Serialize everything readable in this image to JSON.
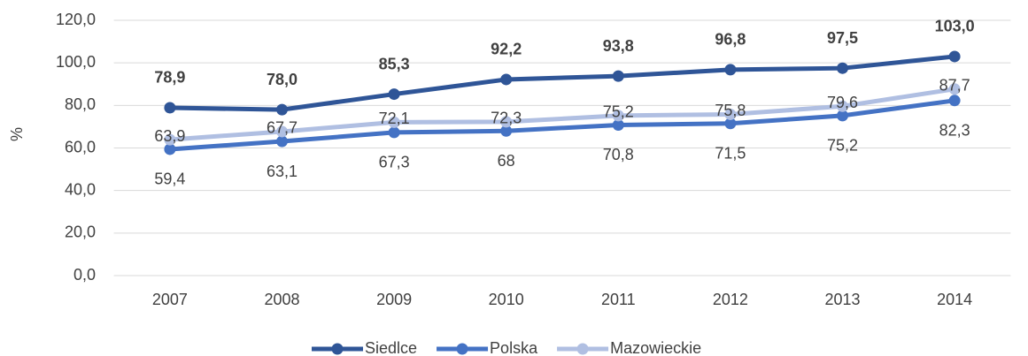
{
  "chart_data": {
    "type": "line",
    "y_label": "%",
    "categories": [
      "2007",
      "2008",
      "2009",
      "2010",
      "2011",
      "2012",
      "2013",
      "2014"
    ],
    "series": [
      {
        "name": "Siedlce",
        "color": "#2f5597",
        "values": [
          78.9,
          78.0,
          85.3,
          92.2,
          93.8,
          96.8,
          97.5,
          103.0
        ],
        "value_labels": [
          "78,9",
          "78,0",
          "85,3",
          "92,2",
          "93,8",
          "96,8",
          "97,5",
          "103,0"
        ]
      },
      {
        "name": "Polska",
        "color": "#4472c4",
        "values": [
          59.4,
          63.1,
          67.3,
          68,
          70.8,
          71.5,
          75.2,
          82.3
        ],
        "value_labels": [
          "59,4",
          "63,1",
          "67,3",
          "68",
          "70,8",
          "71,5",
          "75,2",
          "82,3"
        ]
      },
      {
        "name": "Mazowieckie",
        "color": "#b0bfe2",
        "values": [
          63.9,
          67.7,
          72.1,
          72.3,
          75.2,
          75.8,
          79.6,
          87.7
        ],
        "value_labels": [
          "63,9",
          "67,7",
          "72,1",
          "72,3",
          "75,2",
          "75,8",
          "79,6",
          "87,7"
        ]
      }
    ],
    "ylim": [
      0,
      120
    ],
    "yticks": [
      {
        "value": 0,
        "label": "0,0"
      },
      {
        "value": 20,
        "label": "20,0"
      },
      {
        "value": 40,
        "label": "40,0"
      },
      {
        "value": 60,
        "label": "60,0"
      },
      {
        "value": 80,
        "label": "80,0"
      },
      {
        "value": 100,
        "label": "100,0"
      },
      {
        "value": 120,
        "label": "120,0"
      }
    ],
    "grid": true,
    "legend": "bottom"
  }
}
